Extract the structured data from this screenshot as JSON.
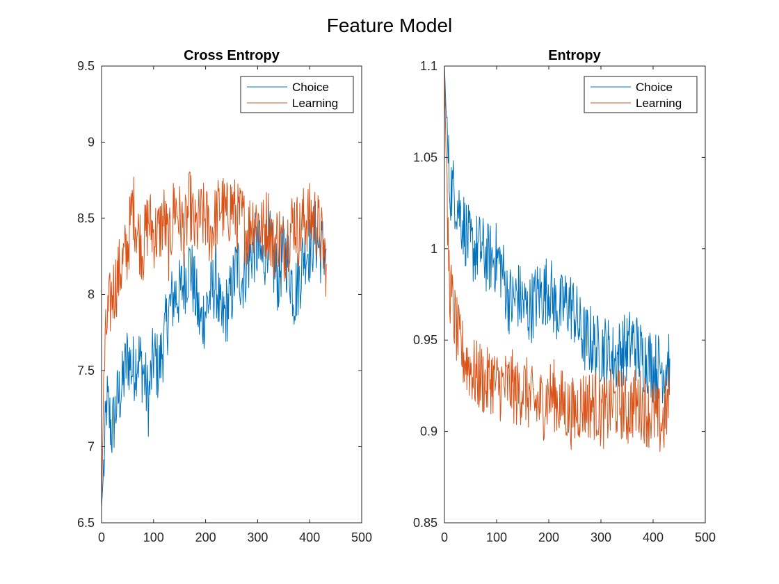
{
  "figure": {
    "title": "Feature Model"
  },
  "colors": {
    "Choice": "#0072BD",
    "Learning": "#D95319"
  },
  "chart_data": [
    {
      "type": "line",
      "title": "Cross Entropy",
      "xlabel": "",
      "ylabel": "",
      "xlim": [
        0,
        500
      ],
      "ylim": [
        6.5,
        9.5
      ],
      "xticks": [
        0,
        100,
        200,
        300,
        400,
        500
      ],
      "yticks": [
        6.5,
        7,
        7.5,
        8,
        8.5,
        9,
        9.5
      ],
      "grid": false,
      "legend": "top-right",
      "series": [
        {
          "name": "Choice",
          "color": "#0072BD",
          "x": [
            0,
            5,
            10,
            20,
            30,
            40,
            50,
            60,
            70,
            80,
            90,
            100,
            110,
            120,
            130,
            140,
            150,
            160,
            170,
            180,
            190,
            200,
            210,
            220,
            230,
            240,
            250,
            260,
            270,
            280,
            290,
            300,
            310,
            320,
            330,
            340,
            350,
            360,
            370,
            380,
            390,
            400,
            410,
            420,
            432
          ],
          "values": [
            6.6,
            6.9,
            7.3,
            7.1,
            7.3,
            7.4,
            7.6,
            7.5,
            7.6,
            7.5,
            7.3,
            7.6,
            7.5,
            7.7,
            7.9,
            8.0,
            8.0,
            8.1,
            8.2,
            8.0,
            7.8,
            7.9,
            8.0,
            8.1,
            7.8,
            7.9,
            8.0,
            8.2,
            8.1,
            8.2,
            8.3,
            8.3,
            8.2,
            8.4,
            8.2,
            8.1,
            8.3,
            8.2,
            8.0,
            8.1,
            8.3,
            8.3,
            8.4,
            8.3,
            8.3
          ]
        },
        {
          "name": "Learning",
          "color": "#D95319",
          "x": [
            0,
            5,
            10,
            20,
            30,
            40,
            50,
            60,
            70,
            80,
            90,
            100,
            110,
            120,
            130,
            140,
            150,
            160,
            170,
            180,
            190,
            200,
            210,
            220,
            230,
            240,
            250,
            260,
            270,
            280,
            290,
            300,
            310,
            320,
            330,
            340,
            350,
            360,
            370,
            380,
            390,
            400,
            410,
            420,
            432
          ],
          "values": [
            6.6,
            7.5,
            7.8,
            8.0,
            8.1,
            8.2,
            8.3,
            8.6,
            8.4,
            8.3,
            8.5,
            8.4,
            8.4,
            8.5,
            8.3,
            8.6,
            8.5,
            8.4,
            8.6,
            8.4,
            8.5,
            8.5,
            8.4,
            8.5,
            8.6,
            8.5,
            8.6,
            8.5,
            8.5,
            8.4,
            8.5,
            8.5,
            8.4,
            8.5,
            8.3,
            8.4,
            8.3,
            8.4,
            8.5,
            8.4,
            8.5,
            8.5,
            8.5,
            8.4,
            8.2
          ]
        }
      ]
    },
    {
      "type": "line",
      "title": "Entropy",
      "xlabel": "",
      "ylabel": "",
      "xlim": [
        0,
        500
      ],
      "ylim": [
        0.85,
        1.1
      ],
      "xticks": [
        0,
        100,
        200,
        300,
        400,
        500
      ],
      "yticks": [
        0.85,
        0.9,
        0.95,
        1,
        1.05,
        1.1
      ],
      "grid": false,
      "legend": "top-right",
      "series": [
        {
          "name": "Choice",
          "color": "#0072BD",
          "x": [
            0,
            5,
            10,
            20,
            30,
            40,
            50,
            60,
            70,
            80,
            90,
            100,
            110,
            120,
            130,
            140,
            150,
            160,
            170,
            180,
            190,
            200,
            210,
            220,
            230,
            240,
            250,
            260,
            270,
            280,
            290,
            300,
            310,
            320,
            330,
            340,
            350,
            360,
            370,
            380,
            390,
            400,
            410,
            420,
            432
          ],
          "values": [
            1.1,
            1.06,
            1.035,
            1.03,
            1.02,
            1.01,
            1.0,
            1.0,
            1.0,
            0.995,
            0.995,
            0.995,
            0.99,
            0.975,
            0.97,
            0.975,
            0.97,
            0.965,
            0.97,
            0.975,
            0.975,
            0.98,
            0.97,
            0.965,
            0.97,
            0.97,
            0.965,
            0.955,
            0.95,
            0.95,
            0.945,
            0.945,
            0.945,
            0.94,
            0.94,
            0.945,
            0.945,
            0.95,
            0.945,
            0.94,
            0.94,
            0.935,
            0.935,
            0.935,
            0.94
          ]
        },
        {
          "name": "Learning",
          "color": "#D95319",
          "x": [
            0,
            5,
            10,
            20,
            30,
            40,
            50,
            60,
            70,
            80,
            90,
            100,
            110,
            120,
            130,
            140,
            150,
            160,
            170,
            180,
            190,
            200,
            210,
            220,
            230,
            240,
            250,
            260,
            270,
            280,
            290,
            300,
            310,
            320,
            330,
            340,
            350,
            360,
            370,
            380,
            390,
            400,
            410,
            420,
            432
          ],
          "values": [
            1.1,
            1.02,
            0.98,
            0.96,
            0.945,
            0.94,
            0.935,
            0.93,
            0.93,
            0.925,
            0.93,
            0.925,
            0.925,
            0.925,
            0.925,
            0.92,
            0.925,
            0.92,
            0.915,
            0.915,
            0.915,
            0.92,
            0.92,
            0.915,
            0.915,
            0.91,
            0.91,
            0.915,
            0.915,
            0.915,
            0.915,
            0.91,
            0.91,
            0.915,
            0.915,
            0.915,
            0.91,
            0.915,
            0.915,
            0.915,
            0.91,
            0.91,
            0.905,
            0.905,
            0.92
          ]
        }
      ]
    }
  ]
}
